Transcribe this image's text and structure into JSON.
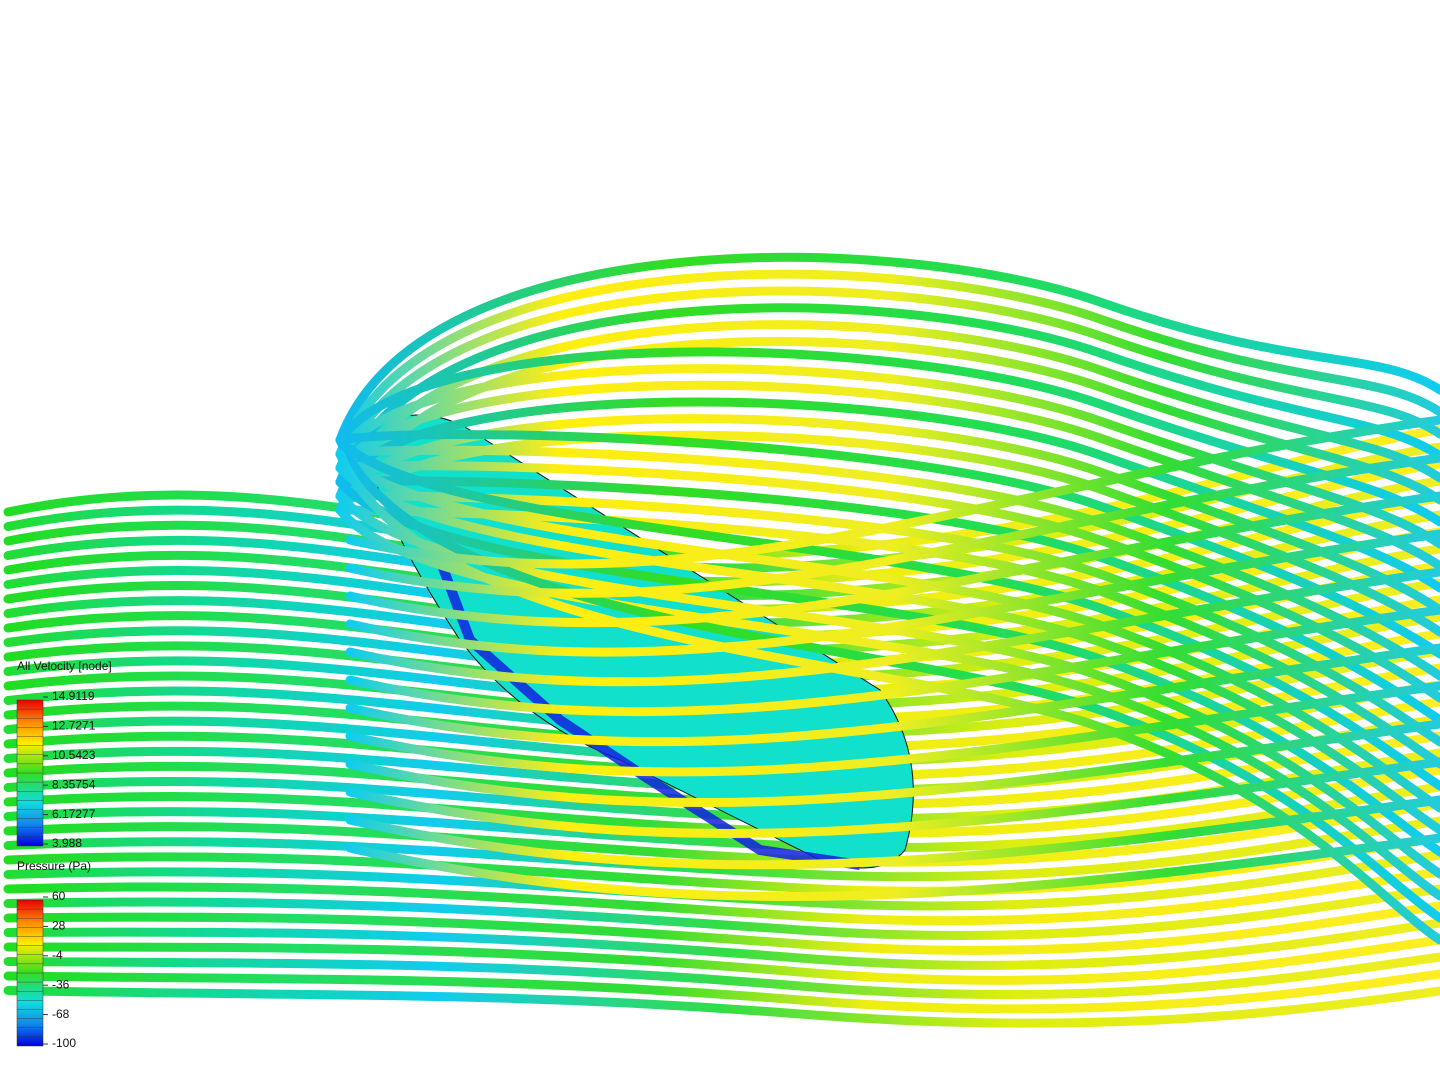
{
  "legends": [
    {
      "title": "All Velocity [node]",
      "ticks": [
        "14.9119",
        "12.7271",
        "10.5423",
        "8.35754",
        "6.17277",
        "3.988"
      ]
    },
    {
      "title": "Pressure (Pa)",
      "ticks": [
        "60",
        "28",
        "-4",
        "-36",
        "-68",
        "-100"
      ]
    }
  ]
}
